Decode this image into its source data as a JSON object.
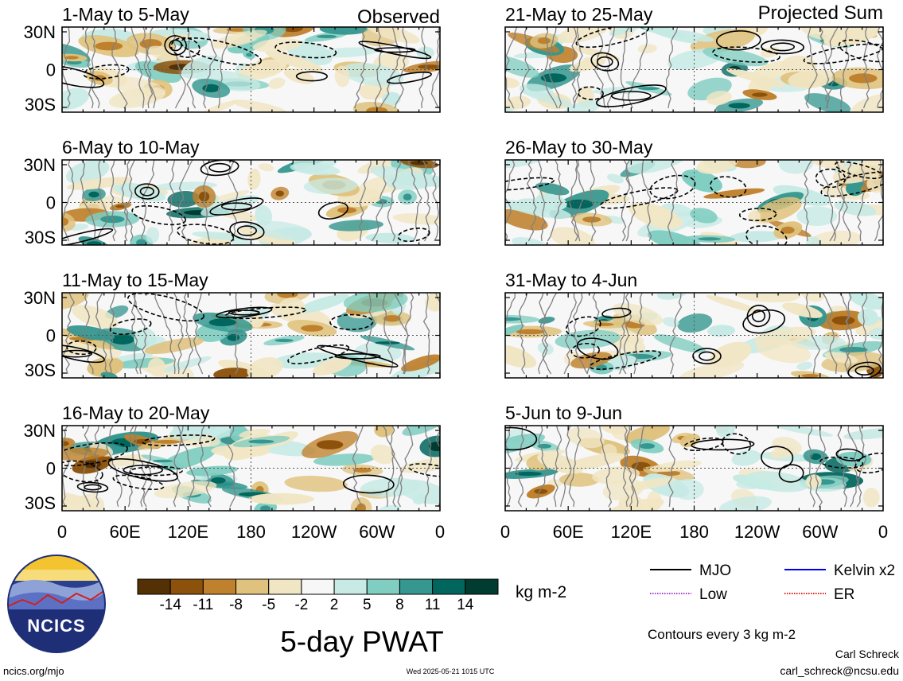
{
  "panel_headers": {
    "observed": "Observed",
    "projected": "Projected Sum"
  },
  "chart_data": [
    {
      "type": "heatmap",
      "column": "observed",
      "title": "1-May to 5-May",
      "ytick_labels": [
        "30N",
        "0",
        "30S"
      ],
      "xtick_labels": []
    },
    {
      "type": "heatmap",
      "column": "observed",
      "title": "6-May to 10-May",
      "ytick_labels": [
        "30N",
        "0",
        "30S"
      ],
      "xtick_labels": []
    },
    {
      "type": "heatmap",
      "column": "observed",
      "title": "11-May to 15-May",
      "ytick_labels": [
        "30N",
        "0",
        "30S"
      ],
      "xtick_labels": []
    },
    {
      "type": "heatmap",
      "column": "observed",
      "title": "16-May to 20-May",
      "ytick_labels": [
        "30N",
        "0",
        "30S"
      ],
      "xtick_labels": [
        "0",
        "60E",
        "120E",
        "180",
        "120W",
        "60W",
        "0"
      ]
    },
    {
      "type": "heatmap",
      "column": "projected",
      "title": "21-May to 25-May",
      "ytick_labels": [],
      "xtick_labels": []
    },
    {
      "type": "heatmap",
      "column": "projected",
      "title": "26-May to 30-May",
      "ytick_labels": [],
      "xtick_labels": []
    },
    {
      "type": "heatmap",
      "column": "projected",
      "title": "31-May to 4-Jun",
      "ytick_labels": [],
      "xtick_labels": []
    },
    {
      "type": "heatmap",
      "column": "projected",
      "title": "5-Jun to 9-Jun",
      "ytick_labels": [],
      "xtick_labels": [
        "0",
        "60E",
        "120E",
        "180",
        "120W",
        "60W",
        "0"
      ]
    }
  ],
  "colorbar": {
    "labels": [
      "-14",
      "-11",
      "-8",
      "-5",
      "-2",
      "2",
      "5",
      "8",
      "11",
      "14"
    ],
    "colors": [
      "#543005",
      "#8c510a",
      "#bf812d",
      "#dfc27d",
      "#f1e6c4",
      "#f7f7f7",
      "#c7eae5",
      "#80cdc1",
      "#35978f",
      "#01665e",
      "#003c30"
    ],
    "unit": "kg m-2"
  },
  "legend": {
    "items": [
      {
        "label": "MJO",
        "color": "#000000",
        "style": "solid"
      },
      {
        "label": "Kelvin x2",
        "color": "#0000ee",
        "style": "solid"
      },
      {
        "label": "Low",
        "color": "#a040d0",
        "style": "dotted"
      },
      {
        "label": "ER",
        "color": "#e02020",
        "style": "dotted"
      }
    ],
    "note": "Contours every 3 kg m-2"
  },
  "main_title": "5-day PWAT",
  "logo": {
    "text": "NCICS"
  },
  "footer": {
    "url": "ncics.org/mjo",
    "timestamp": "Wed 2025-05-21 1015 UTC",
    "author": "Carl Schreck",
    "email": "carl_schreck@ncsu.edu"
  }
}
